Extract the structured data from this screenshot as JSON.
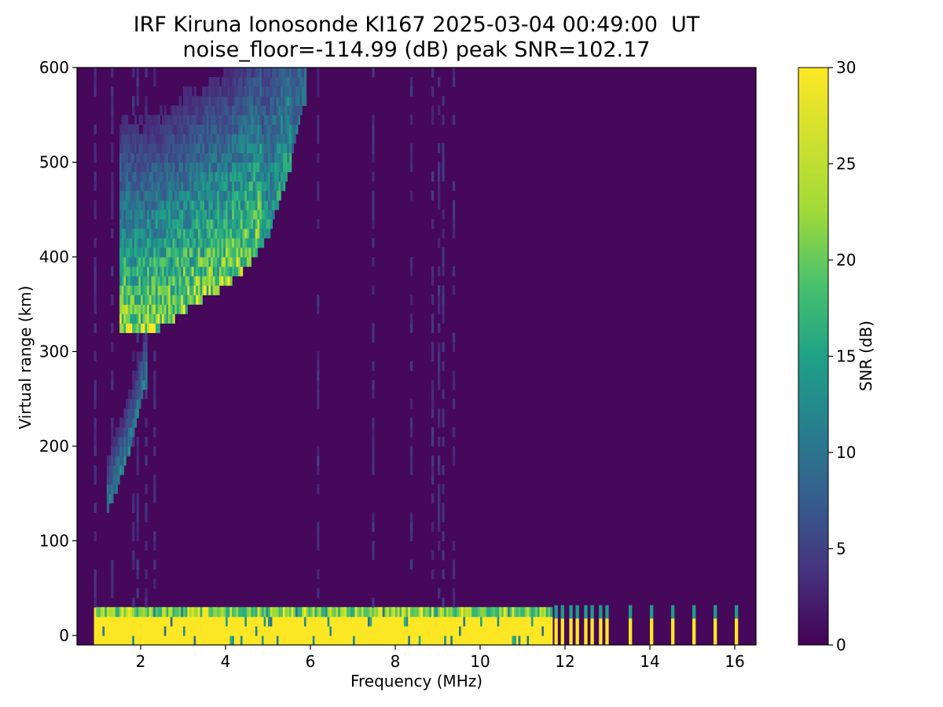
{
  "chart_data": {
    "type": "heatmap",
    "title": "IRF Kiruna Ionosonde KI167 2025-03-04 00:49:00  UT",
    "subtitle": "noise_floor=-114.99 (dB) peak SNR=102.17",
    "xlabel": "Frequency (MHz)",
    "ylabel": "Virtual range (km)",
    "colorbar_label": "SNR (dB)",
    "xlim": [
      0.5,
      16.5
    ],
    "ylim": [
      -10,
      600
    ],
    "clim": [
      0,
      30
    ],
    "colormap": "viridis",
    "x_ticks": [
      2,
      4,
      6,
      8,
      10,
      12,
      14,
      16
    ],
    "y_ticks": [
      0,
      100,
      200,
      300,
      400,
      500,
      600
    ],
    "colorbar_ticks": [
      0,
      5,
      10,
      15,
      20,
      25,
      30
    ],
    "data_frequency_range_mhz": [
      0.9,
      16.2
    ],
    "features": {
      "ground_clutter": {
        "range_km": [
          -10,
          30
        ],
        "snr_db": 30,
        "frequency_mhz": [
          0.9,
          11.7
        ]
      },
      "f_layer_echo": {
        "trace": [
          {
            "freq_mhz": 1.6,
            "range_km": 315
          },
          {
            "freq_mhz": 2.0,
            "range_km": 312
          },
          {
            "freq_mhz": 2.5,
            "range_km": 322
          },
          {
            "freq_mhz": 3.0,
            "range_km": 338
          },
          {
            "freq_mhz": 3.5,
            "range_km": 352
          },
          {
            "freq_mhz": 4.0,
            "range_km": 365
          },
          {
            "freq_mhz": 4.5,
            "range_km": 385
          },
          {
            "freq_mhz": 5.0,
            "range_km": 420
          },
          {
            "freq_mhz": 5.5,
            "range_km": 490
          },
          {
            "freq_mhz": 5.8,
            "range_km": 560
          }
        ],
        "peak_snr_db": 30
      },
      "lower_echo": {
        "trace": [
          {
            "freq_mhz": 1.2,
            "range_km": 125
          },
          {
            "freq_mhz": 1.5,
            "range_km": 160
          },
          {
            "freq_mhz": 1.8,
            "range_km": 200
          },
          {
            "freq_mhz": 2.1,
            "range_km": 260
          }
        ],
        "peak_snr_db": 22
      },
      "discrete_channels_mhz": [
        11.75,
        11.9,
        12.1,
        12.25,
        12.45,
        12.6,
        12.8,
        12.95,
        13.5,
        14.0,
        14.5,
        15.0,
        15.5,
        16.0
      ]
    }
  }
}
